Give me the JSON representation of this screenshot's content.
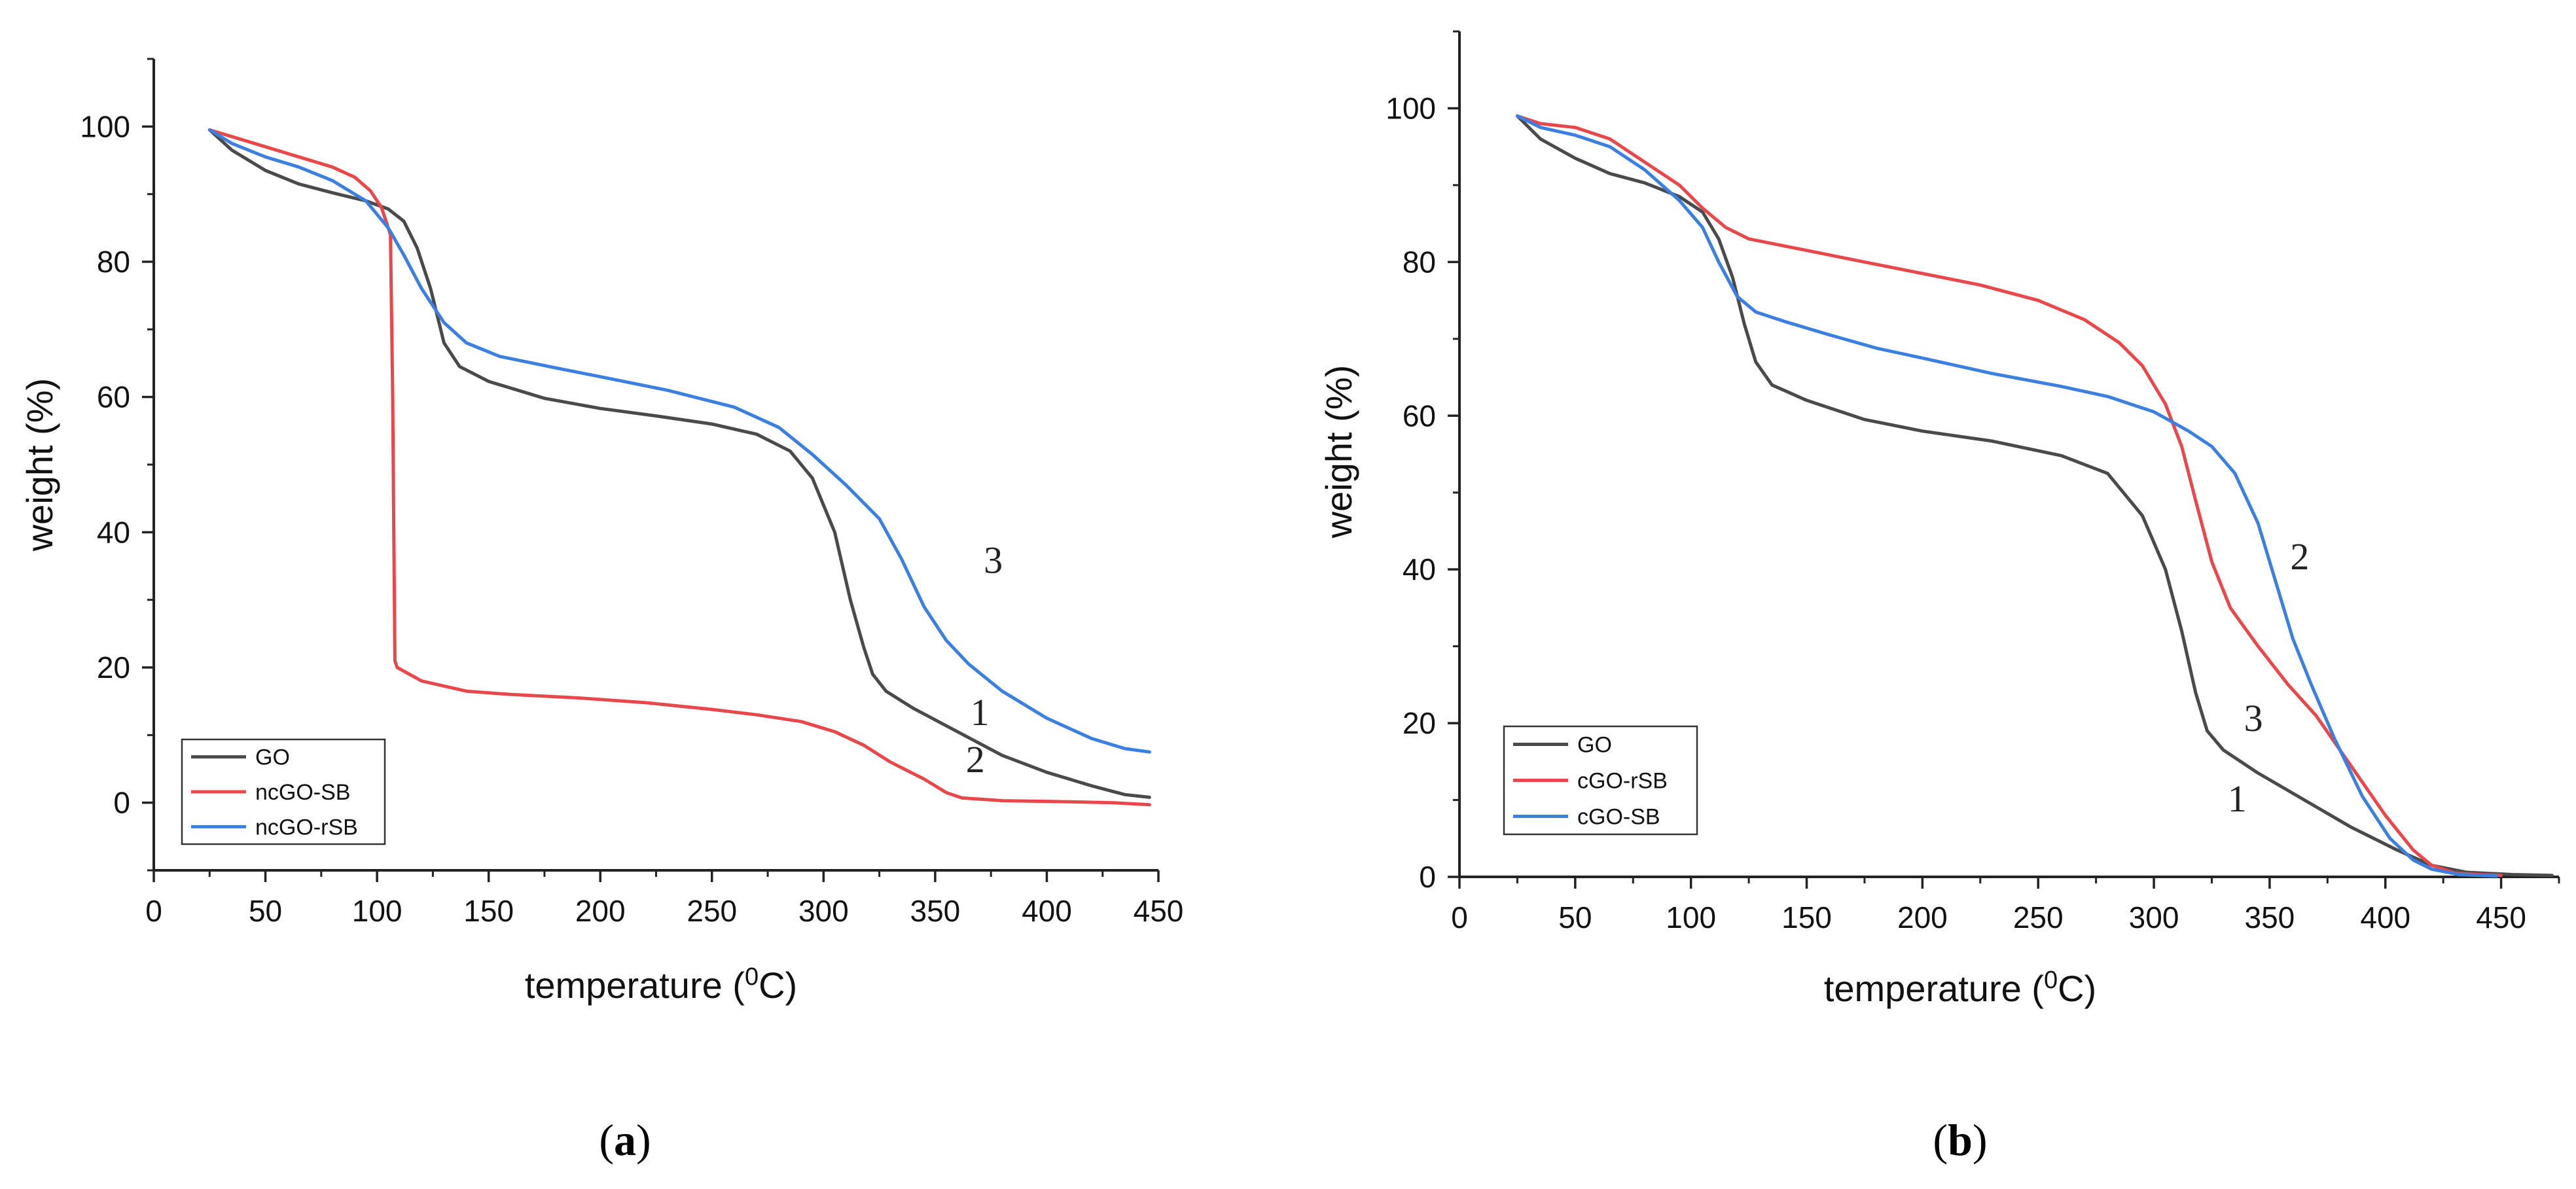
{
  "colors": {
    "GO": "#4a4a4a",
    "red": "#e8474b",
    "blue": "#3b7fe0",
    "axis": "#222222"
  },
  "chart_data": [
    {
      "type": "line",
      "panel_label": "a",
      "caption_open": "(",
      "caption_close": ")",
      "xlabel": "temperature (",
      "xlabel_sup": "0",
      "xlabel_tail": "C)",
      "ylabel": "weight (%)",
      "xlim": [
        0,
        450
      ],
      "ylim": [
        -10,
        110
      ],
      "xticks": [
        0,
        50,
        100,
        150,
        200,
        250,
        300,
        350,
        400,
        450
      ],
      "yticks": [
        0,
        20,
        40,
        60,
        80,
        100
      ],
      "legend_position": "bottom-left",
      "series": [
        {
          "name": "GO",
          "color_key": "GO",
          "points": [
            [
              25,
              99.5
            ],
            [
              35,
              96.5
            ],
            [
              50,
              93.5
            ],
            [
              65,
              91.5
            ],
            [
              80,
              90.2
            ],
            [
              95,
              89
            ],
            [
              105,
              87.8
            ],
            [
              112,
              86
            ],
            [
              118,
              82
            ],
            [
              124,
              76
            ],
            [
              130,
              68
            ],
            [
              137,
              64.5
            ],
            [
              150,
              62.3
            ],
            [
              175,
              59.8
            ],
            [
              200,
              58.3
            ],
            [
              225,
              57.2
            ],
            [
              250,
              56
            ],
            [
              270,
              54.5
            ],
            [
              285,
              52
            ],
            [
              295,
              48
            ],
            [
              305,
              40
            ],
            [
              312,
              30
            ],
            [
              318,
              23
            ],
            [
              322,
              19
            ],
            [
              328,
              16.5
            ],
            [
              340,
              14
            ],
            [
              360,
              10.5
            ],
            [
              380,
              7
            ],
            [
              400,
              4.5
            ],
            [
              420,
              2.5
            ],
            [
              435,
              1.2
            ],
            [
              446,
              0.8
            ]
          ]
        },
        {
          "name": "ncGO-SB",
          "color_key": "red",
          "points": [
            [
              25,
              99.5
            ],
            [
              35,
              98.5
            ],
            [
              50,
              97
            ],
            [
              65,
              95.5
            ],
            [
              80,
              94
            ],
            [
              90,
              92.5
            ],
            [
              97,
              90.5
            ],
            [
              102,
              88
            ],
            [
              106,
              84
            ],
            [
              107,
              60
            ],
            [
              107.5,
              40
            ],
            [
              108,
              21
            ],
            [
              109,
              20
            ],
            [
              120,
              18
            ],
            [
              140,
              16.5
            ],
            [
              160,
              16
            ],
            [
              190,
              15.5
            ],
            [
              220,
              14.8
            ],
            [
              250,
              13.8
            ],
            [
              270,
              13
            ],
            [
              290,
              12
            ],
            [
              305,
              10.5
            ],
            [
              318,
              8.5
            ],
            [
              330,
              6
            ],
            [
              345,
              3.5
            ],
            [
              355,
              1.5
            ],
            [
              362,
              0.7
            ],
            [
              380,
              0.3
            ],
            [
              400,
              0.2
            ],
            [
              430,
              0
            ],
            [
              446,
              -0.3
            ]
          ]
        },
        {
          "name": "ncGO-rSB",
          "color_key": "blue",
          "points": [
            [
              25,
              99.5
            ],
            [
              35,
              97.5
            ],
            [
              50,
              95.5
            ],
            [
              65,
              94
            ],
            [
              80,
              92
            ],
            [
              95,
              89
            ],
            [
              105,
              85
            ],
            [
              112,
              81
            ],
            [
              120,
              76
            ],
            [
              130,
              71
            ],
            [
              140,
              68
            ],
            [
              155,
              66
            ],
            [
              180,
              64.3
            ],
            [
              200,
              63
            ],
            [
              230,
              61
            ],
            [
              260,
              58.5
            ],
            [
              280,
              55.5
            ],
            [
              295,
              51.5
            ],
            [
              310,
              47
            ],
            [
              325,
              42
            ],
            [
              335,
              36
            ],
            [
              345,
              29
            ],
            [
              355,
              24
            ],
            [
              365,
              20.5
            ],
            [
              380,
              16.5
            ],
            [
              400,
              12.5
            ],
            [
              420,
              9.5
            ],
            [
              435,
              8
            ],
            [
              446,
              7.5
            ]
          ]
        }
      ],
      "annotations": [
        {
          "text": "3",
          "x": 376,
          "y": 34
        },
        {
          "text": "1",
          "x": 370,
          "y": 11.5
        },
        {
          "text": "2",
          "x": 368,
          "y": 4.5
        }
      ]
    },
    {
      "type": "line",
      "panel_label": "b",
      "caption_open": "(",
      "caption_close": ")",
      "xlabel": "temperature (",
      "xlabel_sup": "0",
      "xlabel_tail": "C)",
      "ylabel": "weight (%)",
      "xlim": [
        0,
        475
      ],
      "ylim": [
        0,
        110
      ],
      "xticks": [
        0,
        50,
        100,
        150,
        200,
        250,
        300,
        350,
        400,
        450
      ],
      "yticks": [
        0,
        20,
        40,
        60,
        80,
        100
      ],
      "legend_position": "bottom-left",
      "series": [
        {
          "name": "GO",
          "color_key": "GO",
          "points": [
            [
              25,
              99
            ],
            [
              35,
              96
            ],
            [
              50,
              93.5
            ],
            [
              65,
              91.5
            ],
            [
              80,
              90.3
            ],
            [
              95,
              88.5
            ],
            [
              105,
              86.5
            ],
            [
              112,
              83
            ],
            [
              118,
              78
            ],
            [
              123,
              72
            ],
            [
              128,
              67
            ],
            [
              135,
              64
            ],
            [
              150,
              62
            ],
            [
              175,
              59.5
            ],
            [
              200,
              58
            ],
            [
              230,
              56.7
            ],
            [
              260,
              54.8
            ],
            [
              280,
              52.5
            ],
            [
              295,
              47
            ],
            [
              305,
              40
            ],
            [
              312,
              32
            ],
            [
              318,
              24
            ],
            [
              323,
              19
            ],
            [
              330,
              16.5
            ],
            [
              345,
              13.5
            ],
            [
              365,
              10
            ],
            [
              385,
              6.5
            ],
            [
              405,
              3.5
            ],
            [
              420,
              1.5
            ],
            [
              435,
              0.6
            ],
            [
              455,
              0.3
            ],
            [
              472,
              0.2
            ]
          ]
        },
        {
          "name": "cGO-rSB",
          "color_key": "red",
          "points": [
            [
              25,
              99
            ],
            [
              35,
              98
            ],
            [
              50,
              97.5
            ],
            [
              65,
              96
            ],
            [
              80,
              93
            ],
            [
              95,
              90
            ],
            [
              105,
              87
            ],
            [
              115,
              84.5
            ],
            [
              125,
              83
            ],
            [
              150,
              81.5
            ],
            [
              175,
              80
            ],
            [
              200,
              78.5
            ],
            [
              225,
              77
            ],
            [
              250,
              75
            ],
            [
              270,
              72.5
            ],
            [
              285,
              69.5
            ],
            [
              295,
              66.5
            ],
            [
              305,
              61.5
            ],
            [
              312,
              56
            ],
            [
              318,
              49
            ],
            [
              325,
              41
            ],
            [
              333,
              35
            ],
            [
              345,
              30
            ],
            [
              358,
              25
            ],
            [
              370,
              21
            ],
            [
              385,
              14.5
            ],
            [
              400,
              8
            ],
            [
              412,
              3.5
            ],
            [
              420,
              1.5
            ],
            [
              430,
              0.5
            ],
            [
              440,
              0.3
            ],
            [
              450,
              0.2
            ]
          ]
        },
        {
          "name": "cGO-SB",
          "color_key": "blue",
          "points": [
            [
              25,
              99
            ],
            [
              35,
              97.5
            ],
            [
              50,
              96.5
            ],
            [
              65,
              95
            ],
            [
              80,
              92
            ],
            [
              95,
              88
            ],
            [
              105,
              84.5
            ],
            [
              112,
              80
            ],
            [
              120,
              75.5
            ],
            [
              128,
              73.5
            ],
            [
              140,
              72.3
            ],
            [
              160,
              70.5
            ],
            [
              180,
              68.8
            ],
            [
              200,
              67.5
            ],
            [
              230,
              65.5
            ],
            [
              260,
              63.8
            ],
            [
              280,
              62.5
            ],
            [
              300,
              60.5
            ],
            [
              315,
              58
            ],
            [
              325,
              56
            ],
            [
              335,
              52.5
            ],
            [
              345,
              46
            ],
            [
              352,
              39
            ],
            [
              360,
              31
            ],
            [
              368,
              25
            ],
            [
              378,
              18
            ],
            [
              390,
              10.5
            ],
            [
              402,
              5
            ],
            [
              412,
              2.2
            ],
            [
              420,
              1
            ],
            [
              432,
              0.3
            ],
            [
              448,
              0.1
            ]
          ]
        }
      ],
      "annotations": [
        {
          "text": "2",
          "x": 363,
          "y": 40
        },
        {
          "text": "3",
          "x": 343,
          "y": 19
        },
        {
          "text": "1",
          "x": 336,
          "y": 8.5
        }
      ]
    }
  ]
}
